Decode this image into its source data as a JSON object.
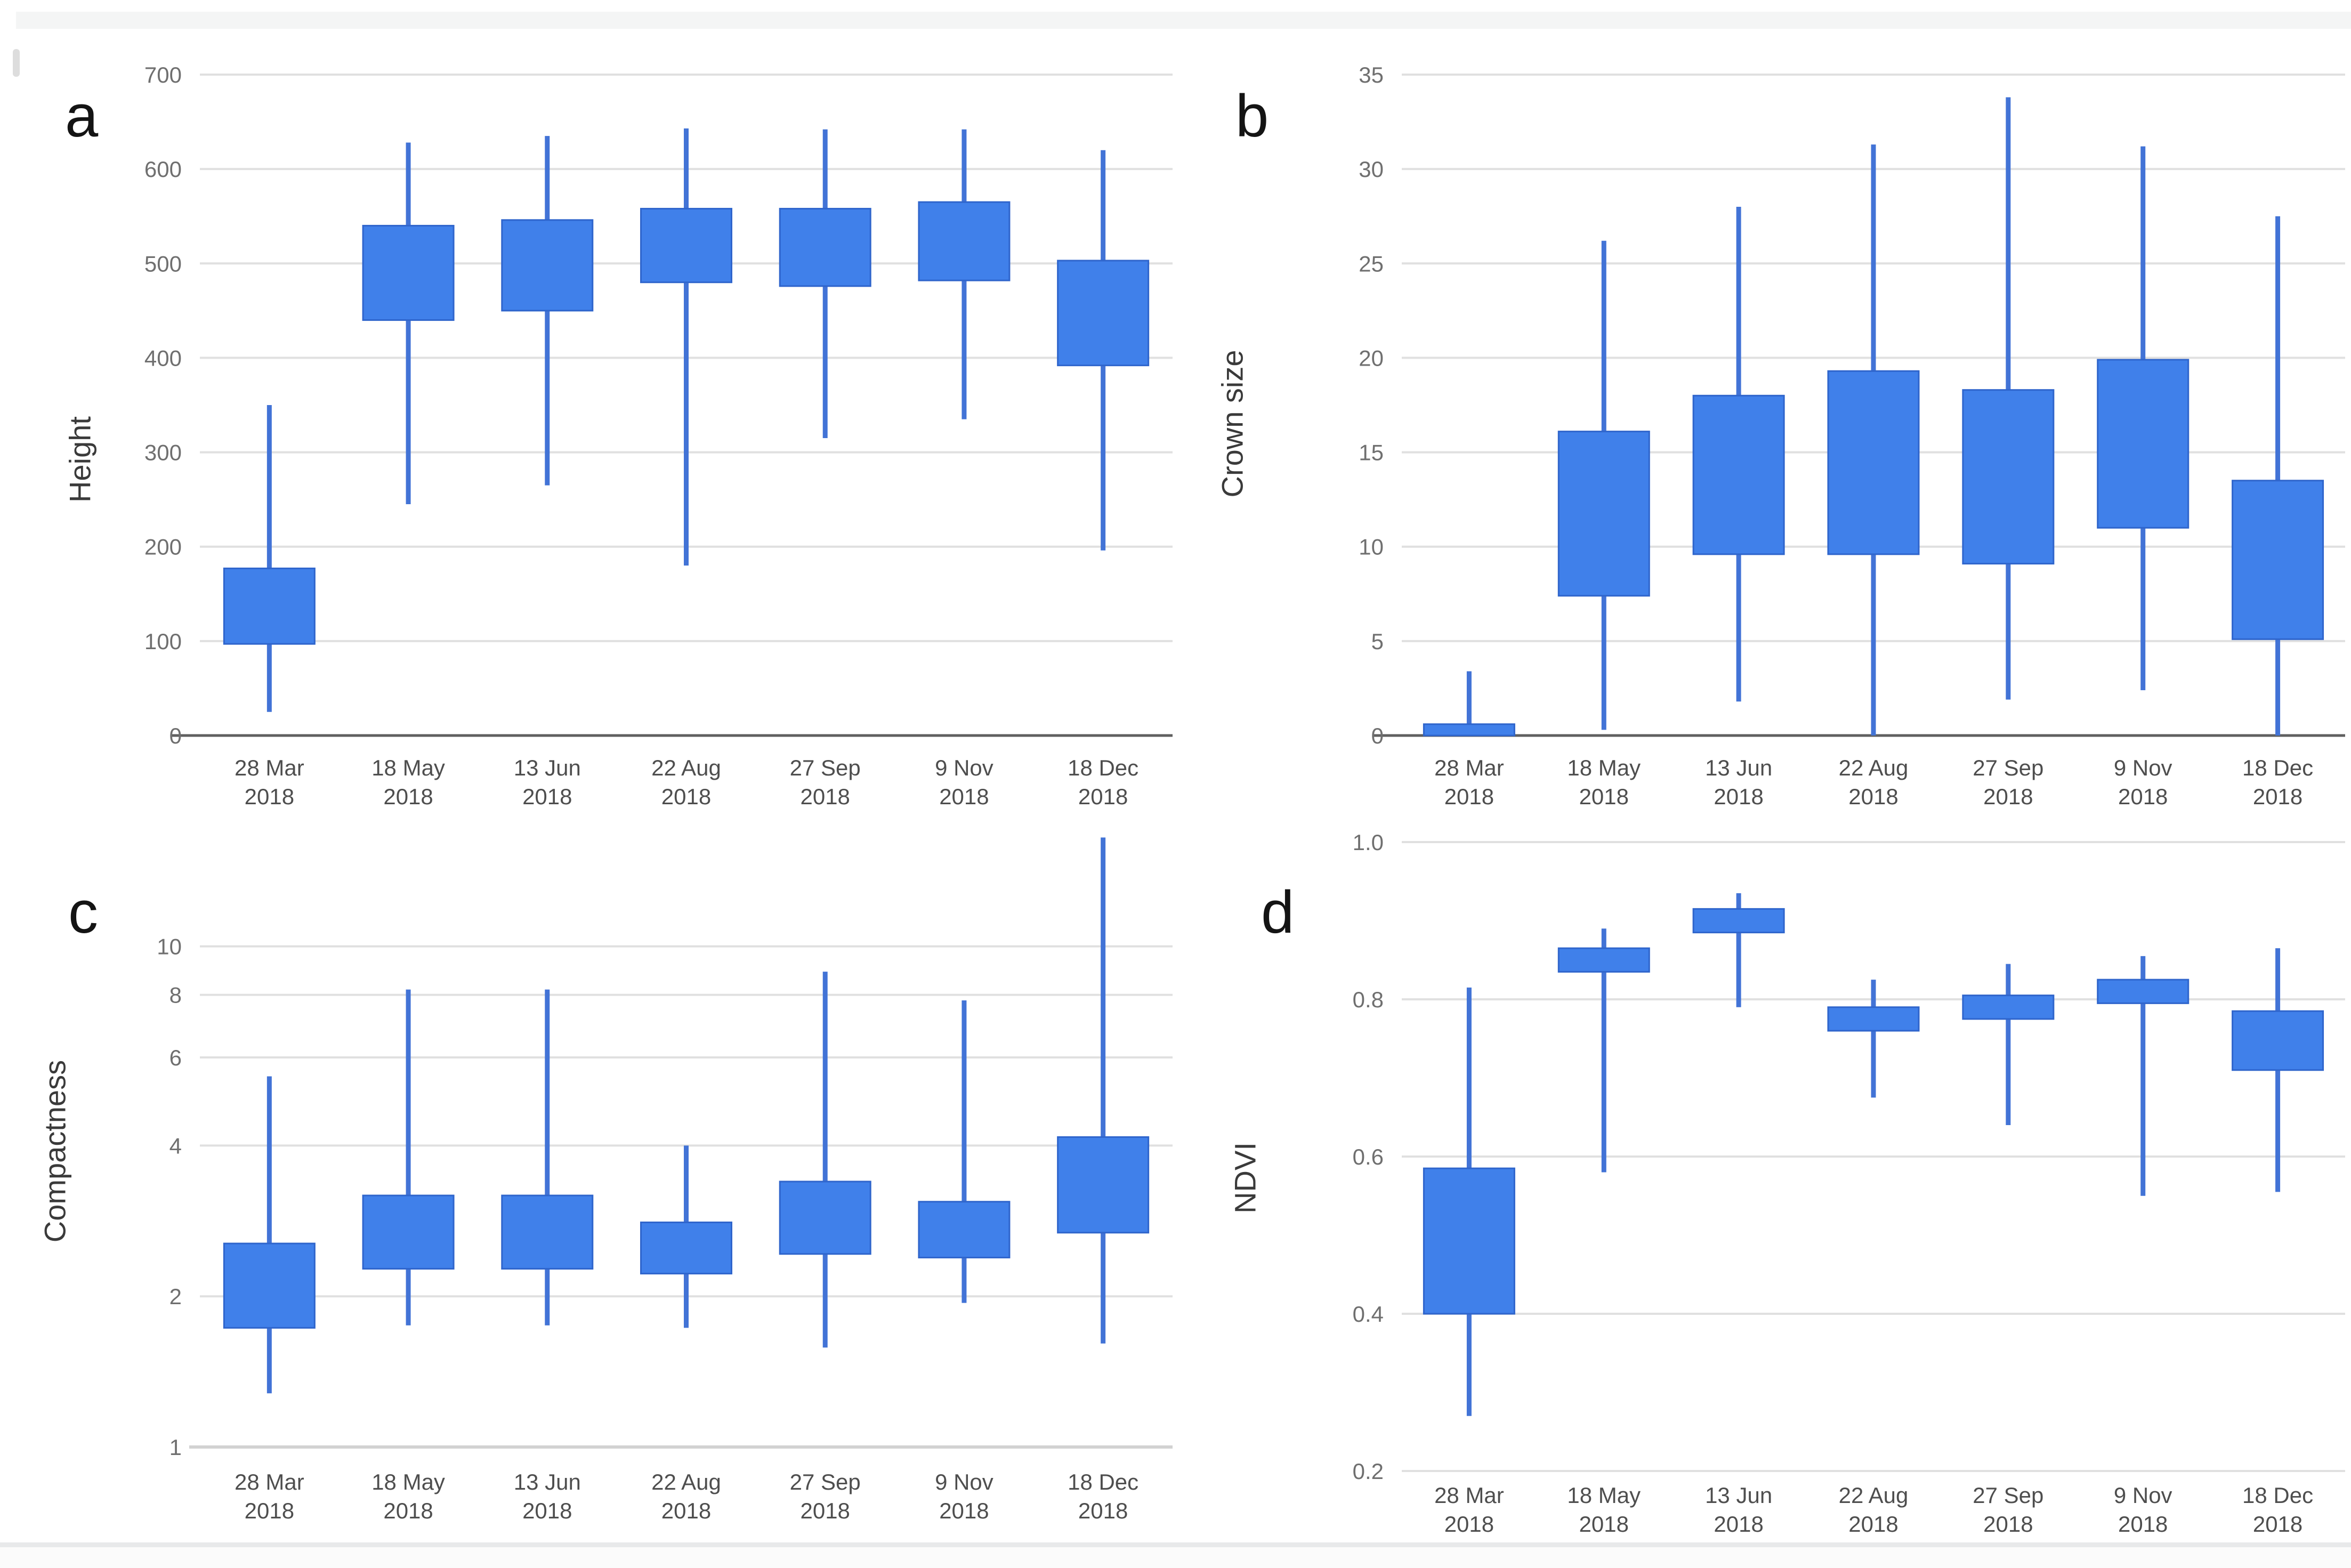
{
  "figure": {
    "description": "Four-panel candlestick box plot figure of tree metrics across seven 2018 acquisition dates",
    "panel_letters": [
      "a",
      "b",
      "c",
      "d"
    ]
  },
  "colors": {
    "box_fill": "#4080ea",
    "box_border": "#2f65cc",
    "whisker": "#4273d6",
    "gridline": "#e0e0e0",
    "baseline_dark": "#606060",
    "baseline_log": "#d2d2d2",
    "y_tick_text": "#6f6f6f",
    "x_tick_text": "#4e4e4e",
    "axis_title_text": "#3a3a3a",
    "panel_letter_text": "#141414",
    "background": "#ffffff",
    "top_strip": "#f4f5f5",
    "divider": "#e8e9ea"
  },
  "chart_data": [
    {
      "id": "a",
      "letter": "a",
      "type": "candlestick",
      "ylabel": "Height",
      "y_scale": "linear",
      "ylim": [
        0,
        700
      ],
      "yticks": [
        0,
        100,
        200,
        300,
        400,
        500,
        600,
        700
      ],
      "ytick_labels": [
        "0",
        "100",
        "200",
        "300",
        "400",
        "500",
        "600",
        "700"
      ],
      "baseline_tick": 0,
      "baseline_style": "dark",
      "categories": [
        [
          "28 Mar",
          "2018"
        ],
        [
          "18 May",
          "2018"
        ],
        [
          "13 Jun",
          "2018"
        ],
        [
          "22 Aug",
          "2018"
        ],
        [
          "27 Sep",
          "2018"
        ],
        [
          "9 Nov",
          "2018"
        ],
        [
          "18 Dec",
          "2018"
        ]
      ],
      "values": [
        {
          "low": 25,
          "q1": 97,
          "q3": 177,
          "high": 350
        },
        {
          "low": 245,
          "q1": 440,
          "q3": 540,
          "high": 628
        },
        {
          "low": 265,
          "q1": 450,
          "q3": 546,
          "high": 635
        },
        {
          "low": 180,
          "q1": 480,
          "q3": 558,
          "high": 643
        },
        {
          "low": 315,
          "q1": 476,
          "q3": 558,
          "high": 642
        },
        {
          "low": 335,
          "q1": 482,
          "q3": 565,
          "high": 642
        },
        {
          "low": 196,
          "q1": 392,
          "q3": 503,
          "high": 620
        }
      ]
    },
    {
      "id": "b",
      "letter": "b",
      "type": "candlestick",
      "ylabel": "Crown size",
      "y_scale": "linear",
      "ylim": [
        0,
        35
      ],
      "yticks": [
        0,
        5,
        10,
        15,
        20,
        25,
        30,
        35
      ],
      "ytick_labels": [
        "0",
        "5",
        "10",
        "15",
        "20",
        "25",
        "30",
        "35"
      ],
      "baseline_tick": 0,
      "baseline_style": "dark",
      "categories": [
        [
          "28 Mar",
          "2018"
        ],
        [
          "18 May",
          "2018"
        ],
        [
          "13 Jun",
          "2018"
        ],
        [
          "22 Aug",
          "2018"
        ],
        [
          "27 Sep",
          "2018"
        ],
        [
          "9 Nov",
          "2018"
        ],
        [
          "18 Dec",
          "2018"
        ]
      ],
      "values": [
        {
          "low": 0,
          "q1": 0,
          "q3": 0.6,
          "high": 3.4
        },
        {
          "low": 0.3,
          "q1": 7.4,
          "q3": 16.1,
          "high": 26.2
        },
        {
          "low": 1.8,
          "q1": 9.6,
          "q3": 18.0,
          "high": 28.0
        },
        {
          "low": 0,
          "q1": 9.6,
          "q3": 19.3,
          "high": 31.3
        },
        {
          "low": 1.9,
          "q1": 9.1,
          "q3": 18.3,
          "high": 33.8
        },
        {
          "low": 2.4,
          "q1": 11.0,
          "q3": 19.9,
          "high": 31.2
        },
        {
          "low": 0,
          "q1": 5.1,
          "q3": 13.5,
          "high": 27.5
        }
      ]
    },
    {
      "id": "c",
      "letter": "c",
      "type": "candlestick",
      "ylabel": "Compactness",
      "y_scale": "log",
      "ylim": [
        1,
        17.3
      ],
      "yticks": [
        1,
        2,
        4,
        6,
        8,
        10
      ],
      "ytick_labels": [
        "1",
        "2",
        "4",
        "6",
        "8",
        "10"
      ],
      "baseline_tick": 1,
      "baseline_style": "log",
      "categories": [
        [
          "28 Mar",
          "2018"
        ],
        [
          "18 May",
          "2018"
        ],
        [
          "13 Jun",
          "2018"
        ],
        [
          "22 Aug",
          "2018"
        ],
        [
          "27 Sep",
          "2018"
        ],
        [
          "9 Nov",
          "2018"
        ],
        [
          "18 Dec",
          "2018"
        ]
      ],
      "values": [
        {
          "low": 1.28,
          "q1": 1.73,
          "q3": 2.55,
          "high": 5.5
        },
        {
          "low": 1.75,
          "q1": 2.27,
          "q3": 3.18,
          "high": 8.2
        },
        {
          "low": 1.75,
          "q1": 2.27,
          "q3": 3.18,
          "high": 8.2
        },
        {
          "low": 1.73,
          "q1": 2.22,
          "q3": 2.81,
          "high": 4.0
        },
        {
          "low": 1.58,
          "q1": 2.43,
          "q3": 3.39,
          "high": 8.9
        },
        {
          "low": 1.94,
          "q1": 2.39,
          "q3": 3.09,
          "high": 7.8
        },
        {
          "low": 1.61,
          "q1": 2.68,
          "q3": 4.16,
          "high": 16.5
        }
      ]
    },
    {
      "id": "d",
      "letter": "d",
      "type": "candlestick",
      "ylabel": "NDVI",
      "y_scale": "linear",
      "ylim": [
        0.2,
        1.0
      ],
      "yticks": [
        0.2,
        0.4,
        0.6,
        0.8,
        1.0
      ],
      "ytick_labels": [
        "0.2",
        "0.4",
        "0.6",
        "0.8",
        "1.0"
      ],
      "baseline_tick": null,
      "baseline_style": "none",
      "categories": [
        [
          "28 Mar",
          "2018"
        ],
        [
          "18 May",
          "2018"
        ],
        [
          "13 Jun",
          "2018"
        ],
        [
          "22 Aug",
          "2018"
        ],
        [
          "27 Sep",
          "2018"
        ],
        [
          "9 Nov",
          "2018"
        ],
        [
          "18 Dec",
          "2018"
        ]
      ],
      "values": [
        {
          "low": 0.27,
          "q1": 0.4,
          "q3": 0.585,
          "high": 0.815
        },
        {
          "low": 0.58,
          "q1": 0.835,
          "q3": 0.865,
          "high": 0.89
        },
        {
          "low": 0.79,
          "q1": 0.885,
          "q3": 0.915,
          "high": 0.935
        },
        {
          "low": 0.675,
          "q1": 0.76,
          "q3": 0.79,
          "high": 0.825
        },
        {
          "low": 0.64,
          "q1": 0.775,
          "q3": 0.805,
          "high": 0.845
        },
        {
          "low": 0.55,
          "q1": 0.795,
          "q3": 0.825,
          "high": 0.855
        },
        {
          "low": 0.555,
          "q1": 0.71,
          "q3": 0.785,
          "high": 0.865
        }
      ]
    }
  ]
}
